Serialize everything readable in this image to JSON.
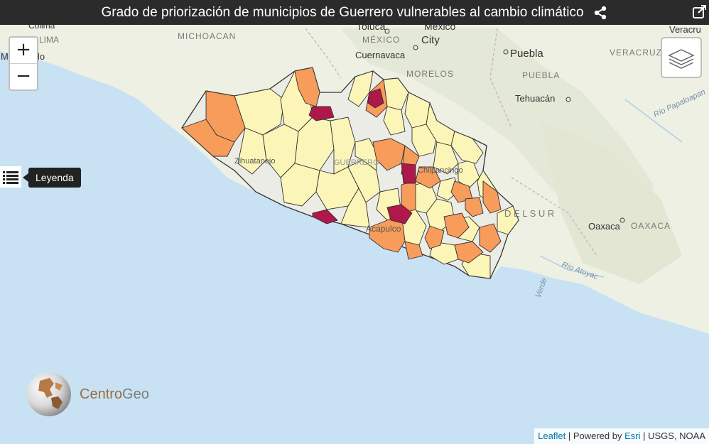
{
  "header": {
    "title": "Grado de priorización de municipios de Guerrero vulnerables al cambio climático"
  },
  "controls": {
    "zoom_in": "+",
    "zoom_out": "−"
  },
  "legend": {
    "tooltip": "Leyenda"
  },
  "logo": {
    "name_part1": "Centro",
    "name_part2": "Geo"
  },
  "attribution": {
    "leaflet": "Leaflet",
    "sep1": " | Powered by ",
    "esri": "Esri",
    "sources": " | USGS, NOAA"
  },
  "basemap_labels": {
    "michoacan": "MICHOACAN",
    "lima": "LIMA",
    "toluca": "Toluca",
    "mexico_city_1": "Mexico",
    "mexico_city_2": "City",
    "mexico_state": "MÉXICO",
    "cuernavaca": "Cuernavaca",
    "morelos": "MORELOS",
    "puebla_city": "Puebla",
    "puebla_state": "PUEBLA",
    "veracruz_state": "VERACRUZ",
    "veracruz_city": "Veracru",
    "tehuacan": "Tehuacán",
    "rio_papaloapan": "Río Papaloapan",
    "sierra": "D E L   S U R",
    "oaxaca_city": "Oaxaca",
    "oaxaca_state": "OAXACA",
    "rio_atoyac": "Río Atoyac",
    "verde": "Verde",
    "zihuatanejo": "Zihuatanejo",
    "acapulco": "Acapulco",
    "chilpancingo": "Chilpancingo",
    "guerrero": "GUERRERO",
    "manzanillo": "Manzanillo",
    "colima": "Colima"
  },
  "colors": {
    "priority_very_high": "#b0174a",
    "priority_high": "#f79c5b",
    "priority_medium": "#fbf5b8",
    "priority_low": "#ecece6",
    "ocean": "#c9e3f3",
    "land": "#eef0e4"
  }
}
